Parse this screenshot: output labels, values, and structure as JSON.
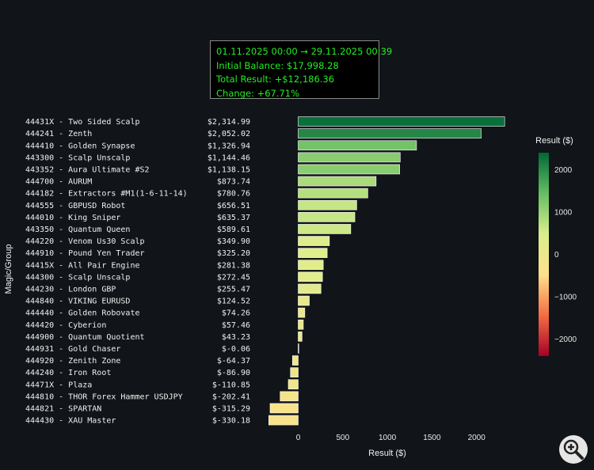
{
  "info": {
    "range": "01.11.2025 00:00 → 29.11.2025 00:39",
    "initial_balance": "Initial Balance: $17,998.28",
    "total_result": "Total Result: +$12,186.36",
    "change": "Change: +67.71%"
  },
  "chart_data": {
    "type": "bar",
    "orientation": "horizontal",
    "xlabel": "Result ($)",
    "ylabel": "Magic/Group",
    "xlim": [
      -350,
      2400
    ],
    "xticks": [
      0,
      500,
      1000,
      1500,
      2000
    ],
    "grid": false,
    "categories": [
      "44431X - Two Sided Scalp",
      "444241 - Zenth",
      "444410 - Golden Synapse",
      "443300 - Scalp Unscalp",
      "443352 - Aura Ultimate #S2",
      "444700 - AURUM",
      "444182 - Extractors #M1(1-6-11-14)",
      "444555 - GBPUSD Robot",
      "444010 - King Sniper",
      "443350 - Quantum Queen",
      "444220 - Venom Us30 Scalp",
      "444910 - Pound Yen Trader",
      "44415X - All Pair Engine",
      "444300 - Scalp Unscalp",
      "444230 - London GBP",
      "444840 - VIKING EURUSD",
      "444440 - Golden Robovate",
      "444420 - Cyberion",
      "444900 - Quantum Quotient",
      "444931 - Gold Chaser",
      "444920 - Zenith Zone",
      "444240 - Iron Root",
      "44471X - Plaza",
      "444810 - THOR Forex Hammer USDJPY",
      "444821 - SPARTAN",
      "444430 - XAU Master"
    ],
    "values": [
      2314.99,
      2052.02,
      1326.94,
      1144.46,
      1138.15,
      873.74,
      780.76,
      656.51,
      635.37,
      589.61,
      349.9,
      325.2,
      281.38,
      272.45,
      255.47,
      124.52,
      74.26,
      57.46,
      43.23,
      -0.06,
      -64.37,
      -86.9,
      -110.85,
      -202.41,
      -315.29,
      -330.18
    ],
    "value_labels": [
      "$2,314.99",
      "$2,052.02",
      "$1,326.94",
      "$1,144.46",
      "$1,138.15",
      "$873.74",
      "$780.76",
      "$656.51",
      "$635.37",
      "$589.61",
      "$349.90",
      "$325.20",
      "$281.38",
      "$272.45",
      "$255.47",
      "$124.52",
      "$74.26",
      "$57.46",
      "$43.23",
      "$-0.06",
      "$-64.37",
      "$-86.90",
      "$-110.85",
      "$-202.41",
      "$-315.29",
      "$-330.18"
    ],
    "colorbar": {
      "title": "Result ($)",
      "range": [
        -2400,
        2400
      ],
      "ticks": [
        2000,
        1000,
        0,
        -1000,
        -2000
      ],
      "tick_labels": [
        "2000",
        "1000",
        "0",
        "−1000",
        "−2000"
      ],
      "colorscale": [
        "#a50026",
        "#f46d43",
        "#fee08b",
        "#d9ef8b",
        "#66bd63",
        "#006837"
      ]
    }
  }
}
